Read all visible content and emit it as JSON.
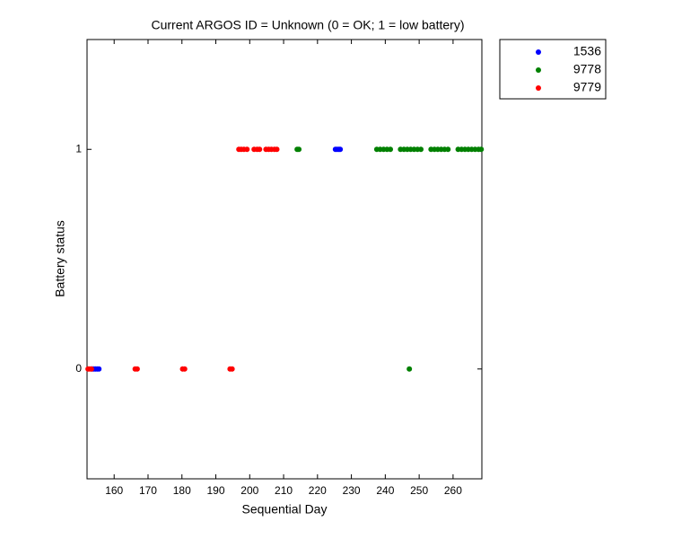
{
  "chart_data": {
    "type": "scatter",
    "title": "Current ARGOS ID = Unknown  (0 = OK; 1 = low battery)",
    "x_label": "Sequential Day",
    "y_label": "Battery status",
    "xlim": [
      152,
      268.5
    ],
    "ylim": [
      -0.5,
      1.5
    ],
    "xticks": [
      160,
      170,
      180,
      190,
      200,
      210,
      220,
      230,
      240,
      250,
      260
    ],
    "yticks": [
      0,
      1
    ],
    "legend_position": "outside-upper-right",
    "series": [
      {
        "name": "1536",
        "color": "#0000ff",
        "x": [
          153.5,
          154,
          154.5,
          155,
          155.5,
          225.3,
          225.8,
          226.3,
          226.7
        ],
        "values": [
          0,
          0,
          0,
          0,
          0,
          1,
          1,
          1,
          1
        ]
      },
      {
        "name": "9778",
        "color": "#008000",
        "x": [
          214,
          214.5,
          237.5,
          238.5,
          239.5,
          240.5,
          241.5,
          244.5,
          245.5,
          246.5,
          247.5,
          248.5,
          249.5,
          250.5,
          253.5,
          254.5,
          255.5,
          256.5,
          257.5,
          258.5,
          261.5,
          262.5,
          263.5,
          264.5,
          265.5,
          266.5,
          267.5,
          268.3,
          247.1
        ],
        "values": [
          1,
          1,
          1,
          1,
          1,
          1,
          1,
          1,
          1,
          1,
          1,
          1,
          1,
          1,
          1,
          1,
          1,
          1,
          1,
          1,
          1,
          1,
          1,
          1,
          1,
          1,
          1,
          1,
          0
        ]
      },
      {
        "name": "9779",
        "color": "#ff0000",
        "x": [
          152.3,
          152.8,
          153.3,
          166.2,
          166.8,
          180.2,
          180.8,
          194.2,
          194.8,
          196.8,
          197.5,
          198.3,
          199.2,
          201.3,
          202.2,
          202.9,
          204.8,
          205.6,
          206.4,
          207.3,
          208
        ],
        "values": [
          0,
          0,
          0,
          0,
          0,
          0,
          0,
          0,
          0,
          1,
          1,
          1,
          1,
          1,
          1,
          1,
          1,
          1,
          1,
          1,
          1
        ]
      }
    ]
  }
}
